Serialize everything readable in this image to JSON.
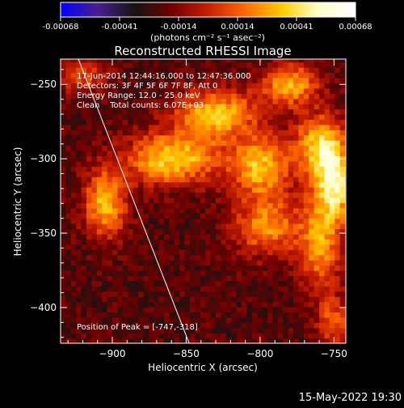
{
  "colorbar": {
    "tick_labels": [
      "-0.00068",
      "-0.00041",
      "-0.00014",
      "0.00014",
      "0.00041",
      "0.00068"
    ],
    "units": "(photons cm⁻² s⁻¹ asec⁻²)",
    "colors": [
      "#0000ff",
      "#4a1f8c",
      "#141414",
      "#6e0000",
      "#c81e00",
      "#ff6a00",
      "#ffcc00",
      "#ffffcc",
      "#ffffff"
    ]
  },
  "chart_data": {
    "type": "heatmap",
    "title": "Reconstructed RHESSI Image",
    "xlabel": "Heliocentric X (arcsec)",
    "ylabel": "Heliocentric Y (arcsec)",
    "xlim": [
      -935,
      -742
    ],
    "ylim": [
      -424,
      -233
    ],
    "x_ticks": [
      -900,
      -850,
      -800,
      -750
    ],
    "y_ticks": [
      -250,
      -300,
      -350,
      -400
    ],
    "x_tick_labels": [
      "−900",
      "−850",
      "−800",
      "−750"
    ],
    "y_tick_labels": [
      "−250",
      "−300",
      "−350",
      "−400"
    ],
    "value_range": [
      -0.00068,
      0.00068
    ],
    "peak": [
      -747,
      -318
    ],
    "limb_line": [
      [
        -923,
        -233
      ],
      [
        -848,
        -424
      ]
    ],
    "annotations": [
      "17-Jun-2014 12:44:16.000 to 12:47:36.000",
      "Detectors: 3F 4F 5F 6F 7F 8F, Att 0",
      "Energy Range: 12.0 - 25.0 keV",
      "Clean    Total counts: 6.07E+03"
    ],
    "peak_label": "Position of Peak = [-747,-318]",
    "sources": [
      {
        "x": -905,
        "y": -330,
        "sx": 10,
        "sy": 16,
        "amp": 0.00055
      },
      {
        "x": -920,
        "y": -245,
        "sx": 12,
        "sy": 8,
        "amp": 0.0003
      },
      {
        "x": -860,
        "y": -300,
        "sx": 22,
        "sy": 12,
        "amp": 0.0006
      },
      {
        "x": -830,
        "y": -270,
        "sx": 20,
        "sy": 12,
        "amp": 0.00055
      },
      {
        "x": -800,
        "y": -305,
        "sx": 14,
        "sy": 14,
        "amp": 0.00055
      },
      {
        "x": -780,
        "y": -250,
        "sx": 14,
        "sy": 10,
        "amp": 0.0005
      },
      {
        "x": -760,
        "y": -290,
        "sx": 12,
        "sy": 14,
        "amp": 0.00055
      },
      {
        "x": -750,
        "y": -318,
        "sx": 10,
        "sy": 18,
        "amp": 0.00068
      },
      {
        "x": -795,
        "y": -345,
        "sx": 16,
        "sy": 14,
        "amp": 0.00045
      },
      {
        "x": -760,
        "y": -360,
        "sx": 10,
        "sy": 20,
        "amp": 0.00045
      },
      {
        "x": -750,
        "y": -410,
        "sx": 8,
        "sy": 12,
        "amp": 0.00035
      }
    ]
  },
  "footer": {
    "timestamp": "15-May-2022 19:30"
  }
}
